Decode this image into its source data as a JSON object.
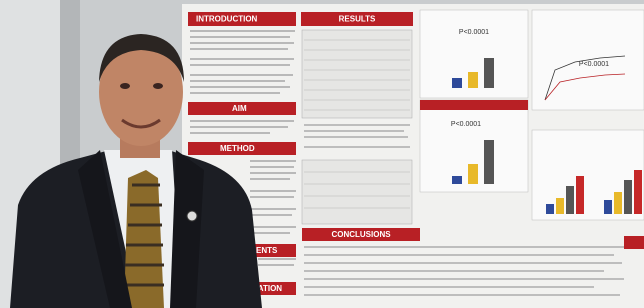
{
  "poster": {
    "left_headers": [
      "INTRODUCTION",
      "AIM",
      "METHOD",
      "ENTS",
      "RATION"
    ],
    "results_header": "RESULTS",
    "conclusions_header": "CONCLUSIONS",
    "p_values": [
      "P<0.0001",
      "P<0.0001",
      "P<0.0001"
    ]
  }
}
